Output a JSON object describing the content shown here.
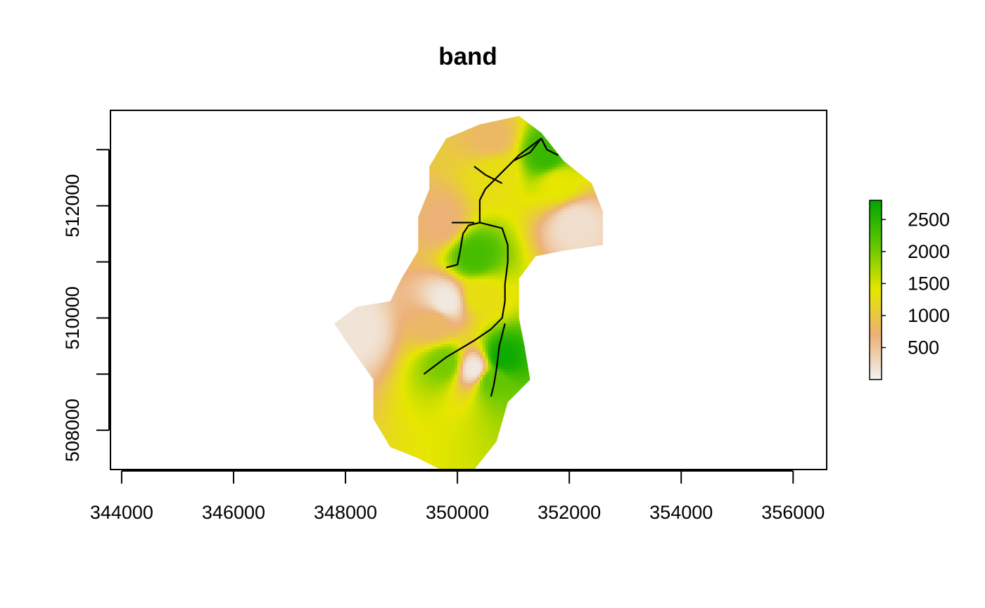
{
  "chart_data": {
    "type": "heatmap",
    "title": "band",
    "xlabel": "",
    "ylabel": "",
    "xlim": [
      343800,
      356600
    ],
    "ylim": [
      507300,
      513700
    ],
    "x_ticks": [
      344000,
      346000,
      348000,
      350000,
      352000,
      354000,
      356000
    ],
    "x_tick_labels": [
      "344000",
      "346000",
      "348000",
      "350000",
      "352000",
      "354000",
      "356000"
    ],
    "y_ticks": [
      508000,
      509000,
      510000,
      511000,
      512000,
      513000
    ],
    "y_tick_labels": [
      "508000",
      "510000",
      "512000"
    ],
    "y_labeled_ticks": [
      508000,
      510000,
      512000
    ],
    "grid": false,
    "legend": {
      "position": "right",
      "range": [
        0,
        2800
      ],
      "ticks": [
        500,
        1000,
        1500,
        2000,
        2500
      ],
      "tick_labels": [
        "500",
        "1000",
        "1500",
        "2000",
        "2500"
      ],
      "colors": [
        "#f2f2f2",
        "#ecb176",
        "#e6e600",
        "#63c600",
        "#00a600"
      ]
    },
    "raster_extent_outline": [
      [
        349700,
        507300
      ],
      [
        349300,
        507500
      ],
      [
        348800,
        507700
      ],
      [
        348500,
        508200
      ],
      [
        348500,
        508900
      ],
      [
        348000,
        509600
      ],
      [
        347800,
        509900
      ],
      [
        348200,
        510200
      ],
      [
        348800,
        510300
      ],
      [
        349000,
        510700
      ],
      [
        349300,
        511200
      ],
      [
        349300,
        511800
      ],
      [
        349500,
        512300
      ],
      [
        349500,
        512700
      ],
      [
        349800,
        513200
      ],
      [
        350400,
        513450
      ],
      [
        351100,
        513600
      ],
      [
        351500,
        513300
      ],
      [
        351900,
        512800
      ],
      [
        352400,
        512400
      ],
      [
        352600,
        511900
      ],
      [
        352600,
        511300
      ],
      [
        351900,
        511200
      ],
      [
        351400,
        511100
      ],
      [
        351100,
        510700
      ],
      [
        351100,
        510000
      ],
      [
        351200,
        509500
      ],
      [
        351300,
        508900
      ],
      [
        350900,
        508500
      ],
      [
        350700,
        507800
      ],
      [
        350300,
        507300
      ]
    ],
    "value_centers": [
      {
        "x": 350800,
        "y": 509300,
        "value": 2700
      },
      {
        "x": 350600,
        "y": 508900,
        "value": 2100
      },
      {
        "x": 349800,
        "y": 509200,
        "value": 2000
      },
      {
        "x": 350300,
        "y": 511100,
        "value": 2300
      },
      {
        "x": 351600,
        "y": 512900,
        "value": 2400
      },
      {
        "x": 351800,
        "y": 512400,
        "value": 1400
      },
      {
        "x": 350700,
        "y": 512600,
        "value": 1300
      },
      {
        "x": 350400,
        "y": 510400,
        "value": 1300
      },
      {
        "x": 349600,
        "y": 509900,
        "value": 800
      },
      {
        "x": 349700,
        "y": 511700,
        "value": 700
      },
      {
        "x": 350600,
        "y": 513200,
        "value": 800
      },
      {
        "x": 352100,
        "y": 511700,
        "value": 200
      },
      {
        "x": 348200,
        "y": 509800,
        "value": 150
      },
      {
        "x": 350300,
        "y": 509100,
        "value": 100
      },
      {
        "x": 349800,
        "y": 510300,
        "value": 100
      }
    ],
    "lines": [
      {
        "points": [
          [
            349400,
            509000
          ],
          [
            349800,
            509300
          ],
          [
            350300,
            509600
          ],
          [
            350600,
            509800
          ],
          [
            350800,
            510000
          ],
          [
            350850,
            510300
          ],
          [
            350850,
            510600
          ],
          [
            350900,
            511000
          ],
          [
            350900,
            511300
          ],
          [
            350800,
            511600
          ],
          [
            350400,
            511700
          ],
          [
            350400,
            511900
          ],
          [
            350400,
            512100
          ],
          [
            350500,
            512300
          ],
          [
            350800,
            512600
          ],
          [
            351100,
            512900
          ],
          [
            351500,
            513200
          ]
        ]
      },
      {
        "points": [
          [
            350600,
            508600
          ],
          [
            350650,
            508800
          ],
          [
            350700,
            509100
          ],
          [
            350750,
            509500
          ],
          [
            350850,
            509900
          ]
        ]
      },
      {
        "points": [
          [
            349800,
            510900
          ],
          [
            350000,
            510950
          ],
          [
            350050,
            511200
          ],
          [
            350100,
            511500
          ],
          [
            350200,
            511650
          ],
          [
            350400,
            511700
          ]
        ]
      },
      {
        "points": [
          [
            349900,
            511700
          ],
          [
            350100,
            511700
          ],
          [
            350300,
            511700
          ]
        ]
      },
      {
        "points": [
          [
            350300,
            512700
          ],
          [
            350500,
            512550
          ],
          [
            350800,
            512400
          ]
        ]
      },
      {
        "points": [
          [
            351000,
            512800
          ],
          [
            351300,
            512950
          ],
          [
            351500,
            513200
          ]
        ]
      },
      {
        "points": [
          [
            351500,
            513200
          ],
          [
            351600,
            513000
          ],
          [
            351800,
            512900
          ]
        ]
      }
    ]
  }
}
